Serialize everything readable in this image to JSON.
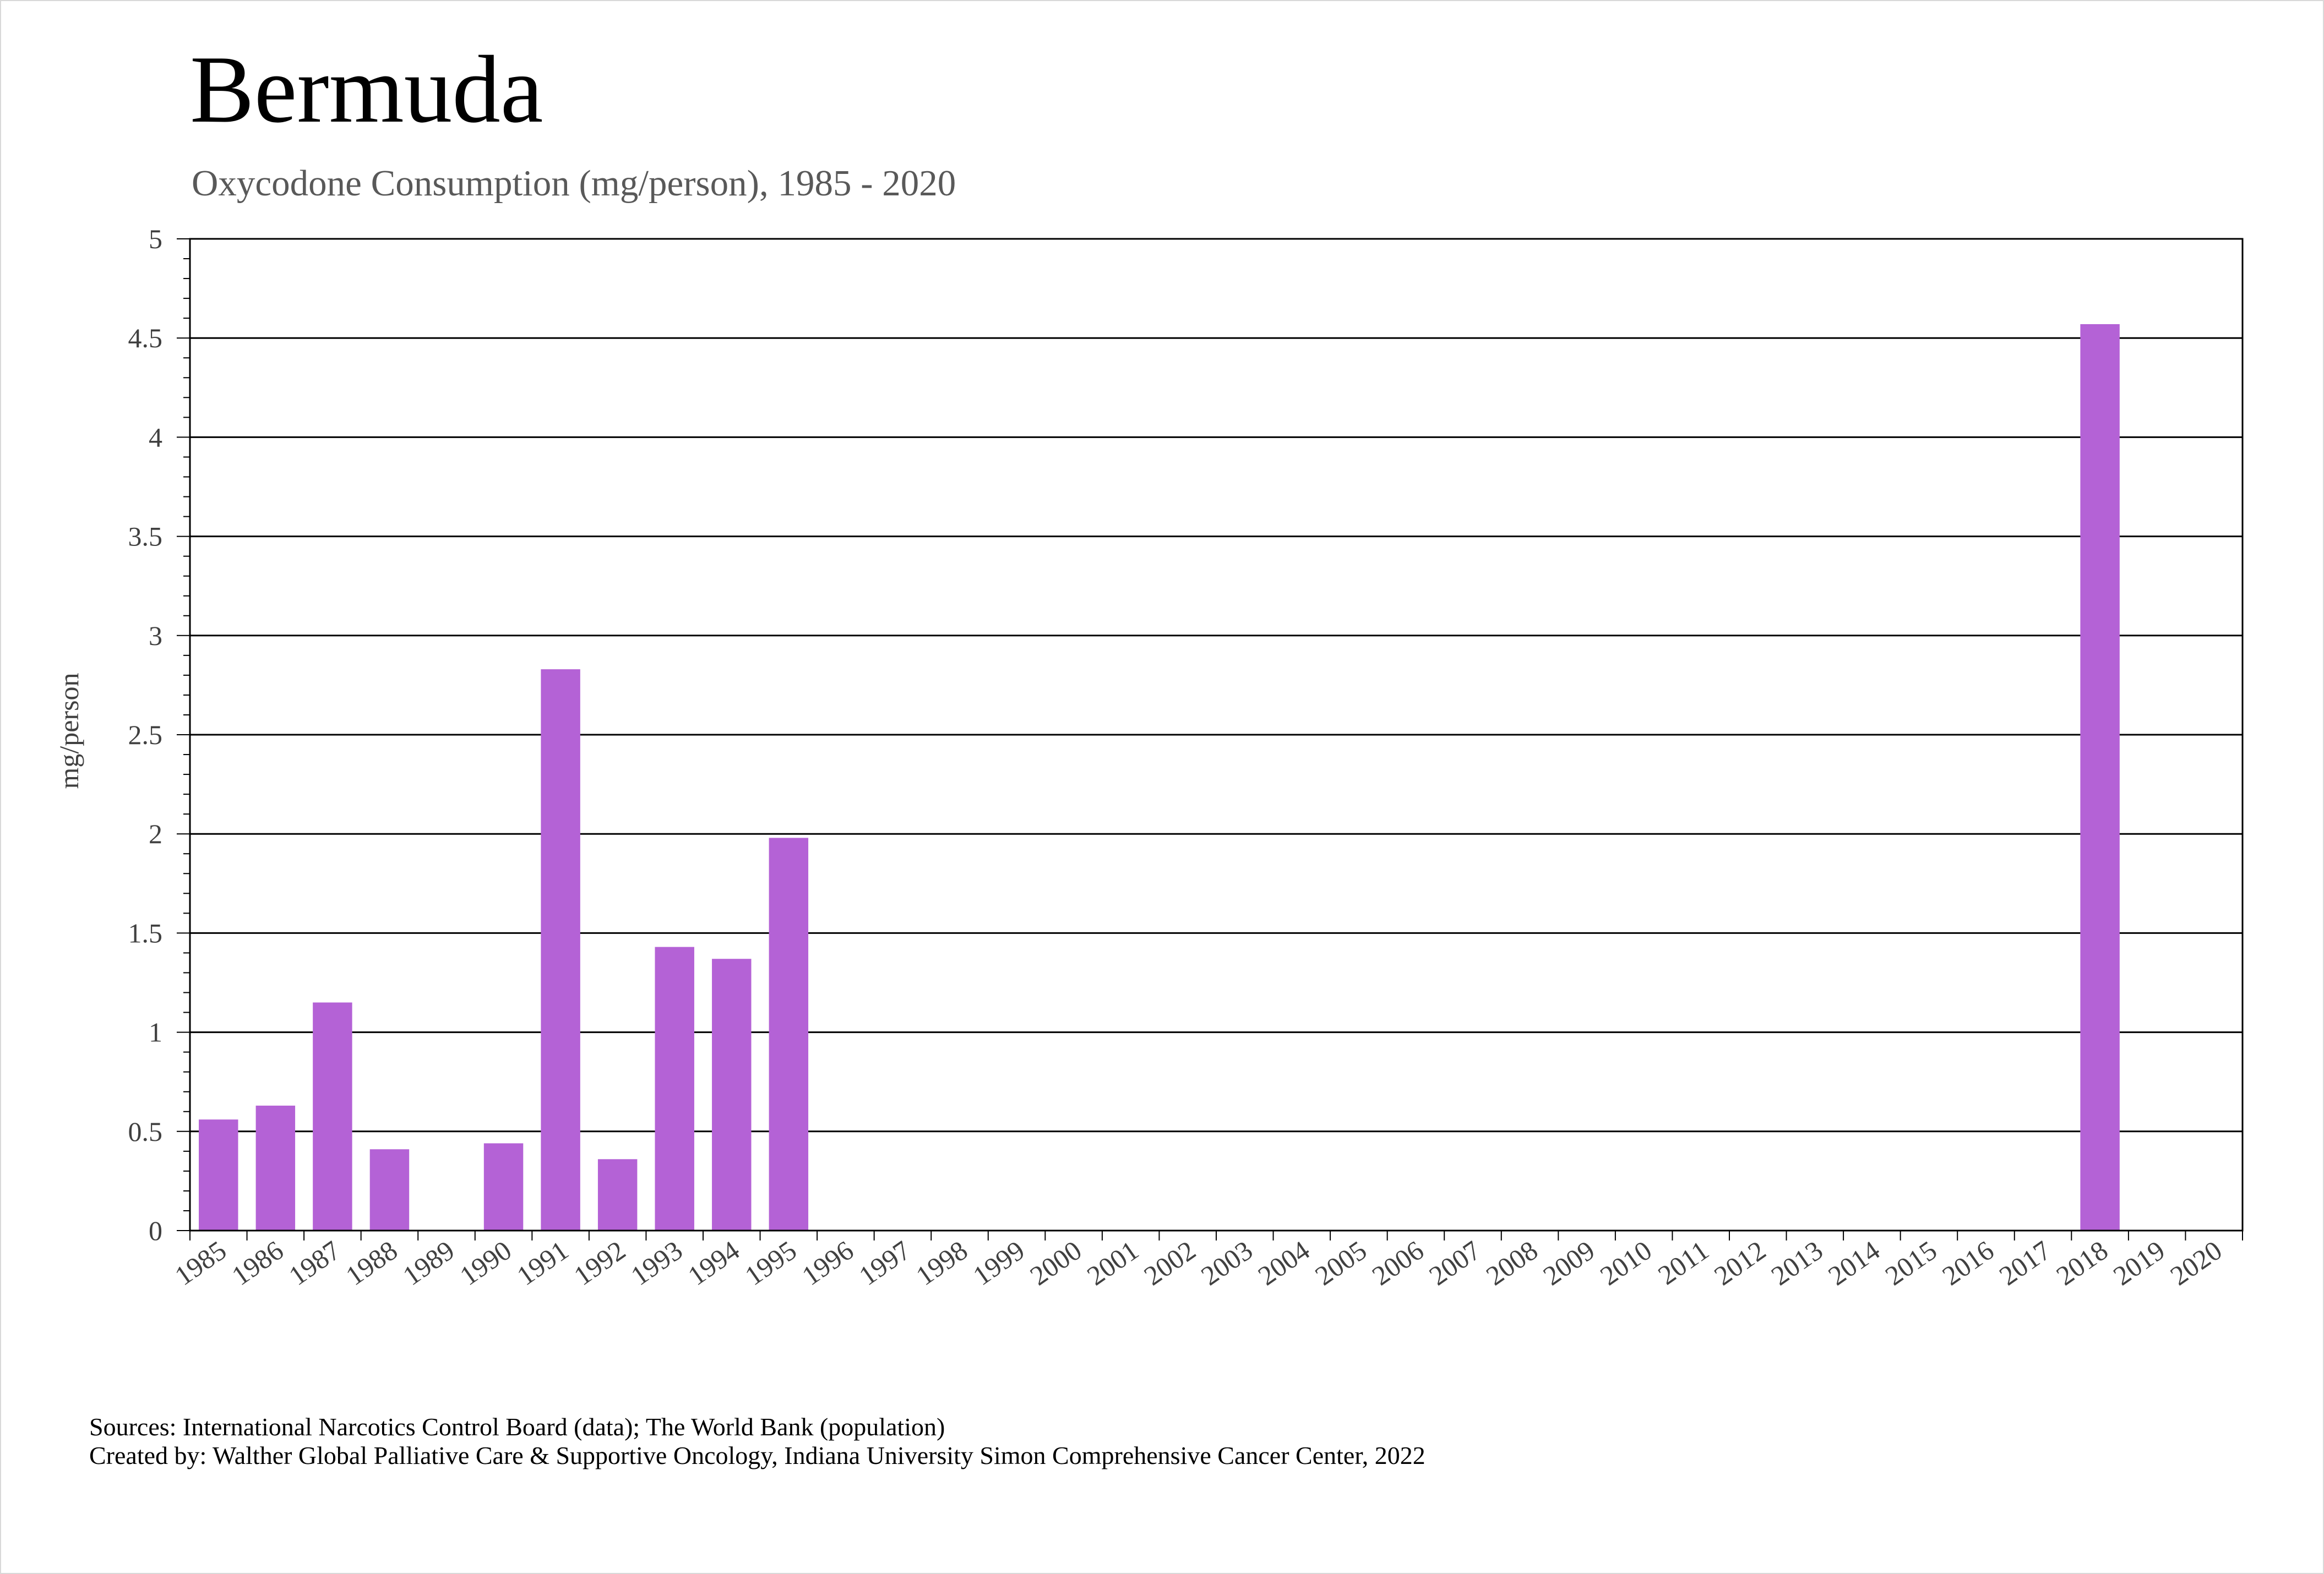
{
  "chart_data": {
    "type": "bar",
    "title": "Bermuda",
    "subtitle": "Oxycodone Consumption (mg/person), 1985 - 2020",
    "xlabel": "",
    "ylabel": "mg/person",
    "ylim": [
      0,
      5
    ],
    "yticks": [
      "0",
      "0.5",
      "1",
      "1.5",
      "2",
      "2.5",
      "3",
      "3.5",
      "4",
      "4.5",
      "5"
    ],
    "grid": true,
    "bar_color": "#b462d6",
    "categories": [
      "1985",
      "1986",
      "1987",
      "1988",
      "1989",
      "1990",
      "1991",
      "1992",
      "1993",
      "1994",
      "1995",
      "1996",
      "1997",
      "1998",
      "1999",
      "2000",
      "2001",
      "2002",
      "2003",
      "2004",
      "2005",
      "2006",
      "2007",
      "2008",
      "2009",
      "2010",
      "2011",
      "2012",
      "2013",
      "2014",
      "2015",
      "2016",
      "2017",
      "2018",
      "2019",
      "2020"
    ],
    "values": [
      0.56,
      0.63,
      1.15,
      0.41,
      0,
      0.44,
      2.83,
      0.36,
      1.43,
      1.37,
      1.98,
      0,
      0,
      0,
      0,
      0,
      0,
      0,
      0,
      0,
      0,
      0,
      0,
      0,
      0,
      0,
      0,
      0,
      0,
      0,
      0,
      0,
      0,
      4.57,
      0,
      0
    ]
  },
  "footer": {
    "sources": "Sources: International Narcotics Control Board (data); The World Bank (population)",
    "created_by": "Created by: Walther Global Palliative Care & Supportive Oncology, Indiana University Simon Comprehensive Cancer Center, 2022"
  }
}
